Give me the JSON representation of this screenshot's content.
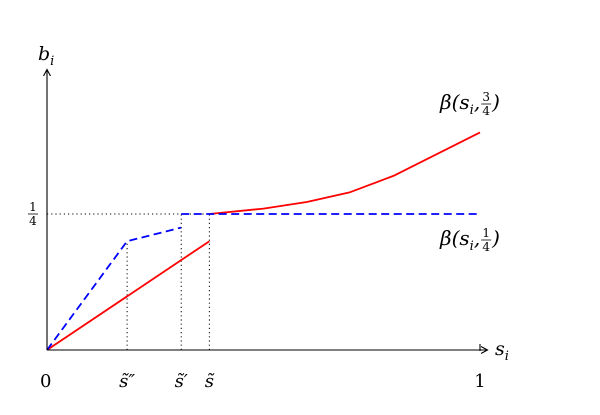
{
  "chart_data": {
    "type": "line",
    "xlim": [
      0,
      1
    ],
    "ylim": [
      0,
      0.375
    ],
    "origin_label": "0",
    "x_axis": {
      "label": "s",
      "subscript": "i"
    },
    "y_axis": {
      "label": "b",
      "subscript": "i"
    },
    "x_ticks": [
      {
        "value": 0.185,
        "text": "s̃″"
      },
      {
        "value": 0.31,
        "text": "s̃′"
      },
      {
        "value": 0.375,
        "text": "s̃"
      },
      {
        "value": 1.0,
        "text": "1"
      }
    ],
    "y_ticks": [
      {
        "value": 0.25,
        "num": "1",
        "den": "4"
      }
    ],
    "reference_lines": [
      {
        "orientation": "horizontal",
        "y": 0.25,
        "from_x": 0,
        "to_x": 0.375,
        "style": "dotted"
      },
      {
        "orientation": "vertical",
        "x": 0.185,
        "from_y": 0,
        "to_y": 0.2,
        "style": "dotted"
      },
      {
        "orientation": "vertical",
        "x": 0.31,
        "from_y": 0,
        "to_y": 0.25,
        "style": "dotted"
      },
      {
        "orientation": "vertical",
        "x": 0.375,
        "from_y": 0,
        "to_y": 0.25,
        "style": "dotted"
      }
    ],
    "series": [
      {
        "label_parts": {
          "prefix": "β(s",
          "sub": "i",
          "mid": ", ",
          "num": "3",
          "den": "4",
          "suffix": ")"
        },
        "color": "#ff0000",
        "style": "solid",
        "segments": [
          [
            [
              0,
              0
            ],
            [
              0.375,
              0.2
            ]
          ],
          [
            [
              0.375,
              0.25
            ],
            [
              0.5,
              0.26
            ],
            [
              0.6,
              0.272
            ],
            [
              0.7,
              0.29
            ],
            [
              0.8,
              0.32
            ],
            [
              0.9,
              0.36
            ],
            [
              1.0,
              0.4
            ]
          ]
        ]
      },
      {
        "label_parts": {
          "prefix": "β(s",
          "sub": "i",
          "mid": ", ",
          "num": "1",
          "den": "4",
          "suffix": ")"
        },
        "color": "#0000ff",
        "style": "dashed",
        "segments": [
          [
            [
              0,
              0
            ],
            [
              0.185,
              0.2
            ],
            [
              0.31,
              0.225
            ]
          ],
          [
            [
              0.31,
              0.25
            ],
            [
              1.0,
              0.25
            ]
          ]
        ]
      }
    ]
  }
}
